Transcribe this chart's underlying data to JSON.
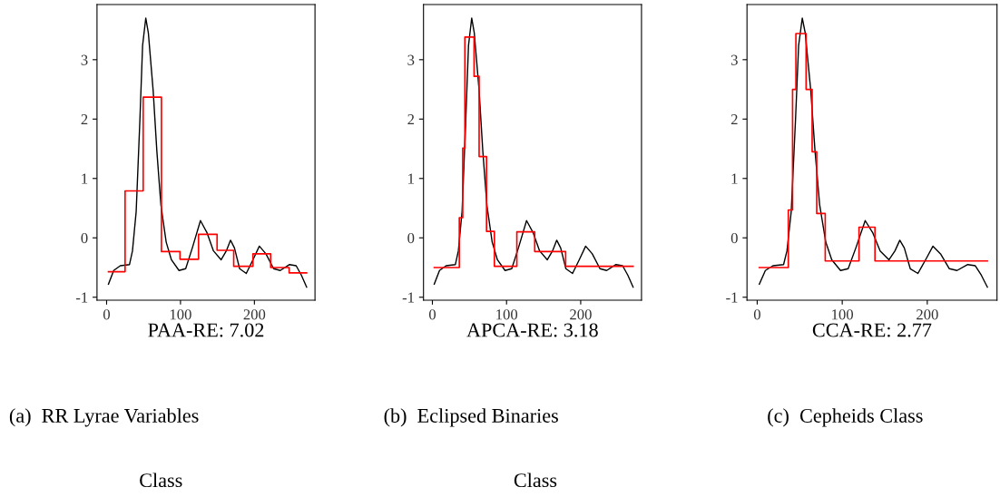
{
  "chart_data": [
    {
      "type": "line",
      "xlabel": "PAA-RE: 7.02",
      "xlim": [
        -13,
        282
      ],
      "ylim": [
        -1.05,
        3.93
      ],
      "xticks": [
        0,
        100,
        200
      ],
      "yticks": [
        -1,
        0,
        1,
        2,
        3
      ],
      "grid": false,
      "annotations": [
        "(a)  RR Lyrae Variables",
        "Class"
      ],
      "series": [
        {
          "color": "#000000",
          "x": [
            2.5,
            9.6,
            18.5,
            31,
            35,
            40,
            45,
            48.7,
            53,
            56.5,
            63,
            68,
            73.5,
            80.6,
            87.7,
            98,
            107,
            116,
            127,
            135.7,
            144.6,
            155,
            162,
            167.7,
            173,
            180,
            189,
            198,
            206.7,
            215.6,
            226,
            235,
            247.6,
            256.5,
            263.6,
            270.7
          ],
          "values": [
            -0.78,
            -0.55,
            -0.47,
            -0.45,
            -0.22,
            0.44,
            1.97,
            3.24,
            3.7,
            3.45,
            2.48,
            1.46,
            0.55,
            -0.07,
            -0.37,
            -0.55,
            -0.52,
            -0.17,
            0.29,
            0.09,
            -0.22,
            -0.37,
            -0.22,
            -0.04,
            -0.17,
            -0.52,
            -0.6,
            -0.37,
            -0.14,
            -0.27,
            -0.52,
            -0.55,
            -0.45,
            -0.47,
            -0.63,
            -0.83
          ]
        },
        {
          "type": "step",
          "color": "#ff0000",
          "x": [
            2.5,
            25,
            49.5,
            74.2,
            99.3,
            124.4,
            149.5,
            172,
            198,
            222,
            247,
            270.7
          ],
          "values": [
            -0.57,
            0.79,
            2.37,
            -0.23,
            -0.36,
            0.06,
            -0.21,
            -0.48,
            -0.27,
            -0.5,
            -0.59,
            -0.59
          ]
        }
      ]
    },
    {
      "type": "line",
      "xlabel": "APCA-RE: 3.18",
      "xlim": [
        -12,
        282
      ],
      "ylim": [
        -1.05,
        3.93
      ],
      "xticks": [
        0,
        100,
        200
      ],
      "yticks": [
        -1,
        0,
        1,
        2,
        3
      ],
      "grid": false,
      "annotations": [
        "(b)  Eclipsed Binaries",
        "Class"
      ],
      "series": [
        {
          "color": "#000000",
          "x": [
            2.5,
            9.6,
            18.5,
            31,
            35,
            40,
            45,
            48.7,
            53,
            56.5,
            63,
            68,
            73.5,
            80.6,
            87.7,
            98,
            107,
            116,
            127,
            135.7,
            144.6,
            155,
            162,
            167.7,
            173,
            180,
            189,
            198,
            206.7,
            215.6,
            226,
            235,
            247.6,
            256.5,
            263.6,
            270.7
          ],
          "values": [
            -0.78,
            -0.55,
            -0.47,
            -0.45,
            -0.22,
            0.44,
            1.97,
            3.24,
            3.7,
            3.45,
            2.48,
            1.46,
            0.55,
            -0.07,
            -0.37,
            -0.55,
            -0.52,
            -0.17,
            0.29,
            0.09,
            -0.22,
            -0.37,
            -0.22,
            -0.04,
            -0.17,
            -0.52,
            -0.6,
            -0.37,
            -0.14,
            -0.27,
            -0.52,
            -0.55,
            -0.45,
            -0.47,
            -0.63,
            -0.83
          ]
        },
        {
          "type": "step",
          "color": "#ff0000",
          "x": [
            2.5,
            36.3,
            40.9,
            43.8,
            56.2,
            63,
            73,
            83.6,
            113.9,
            138,
            179.7,
            270.7
          ],
          "values": [
            -0.5,
            0.34,
            1.51,
            3.38,
            2.72,
            1.37,
            0.11,
            -0.48,
            0.1,
            -0.23,
            -0.48,
            -0.48
          ]
        }
      ]
    },
    {
      "type": "line",
      "xlabel": "CCA-RE: 2.77",
      "xlim": [
        -12,
        282
      ],
      "ylim": [
        -1.05,
        3.93
      ],
      "xticks": [
        0,
        100,
        200
      ],
      "yticks": [
        -1,
        0,
        1,
        2,
        3
      ],
      "grid": false,
      "annotations": [
        "(c)  Cepheids Class"
      ],
      "series": [
        {
          "color": "#000000",
          "x": [
            2.5,
            9.6,
            18.5,
            31,
            35,
            40,
            45,
            48.7,
            53,
            56.5,
            63,
            68,
            73.5,
            80.6,
            87.7,
            98,
            107,
            116,
            127,
            135.7,
            144.6,
            155,
            162,
            167.7,
            173,
            180,
            189,
            198,
            206.7,
            215.6,
            226,
            235,
            247.6,
            256.5,
            263.6,
            270.7
          ],
          "values": [
            -0.78,
            -0.55,
            -0.47,
            -0.45,
            -0.22,
            0.44,
            1.97,
            3.24,
            3.7,
            3.45,
            2.48,
            1.46,
            0.55,
            -0.07,
            -0.37,
            -0.55,
            -0.52,
            -0.17,
            0.29,
            0.09,
            -0.22,
            -0.37,
            -0.22,
            -0.04,
            -0.17,
            -0.52,
            -0.6,
            -0.37,
            -0.14,
            -0.27,
            -0.52,
            -0.55,
            -0.45,
            -0.47,
            -0.63,
            -0.83
          ]
        },
        {
          "type": "step",
          "color": "#ff0000",
          "x": [
            2.5,
            36.6,
            41.6,
            45.5,
            57.5,
            64.6,
            70,
            80,
            119.7,
            138.5,
            270.7
          ],
          "values": [
            -0.5,
            0.47,
            2.5,
            3.44,
            2.5,
            1.45,
            0.41,
            -0.39,
            0.18,
            -0.39,
            -0.39
          ]
        }
      ]
    }
  ]
}
